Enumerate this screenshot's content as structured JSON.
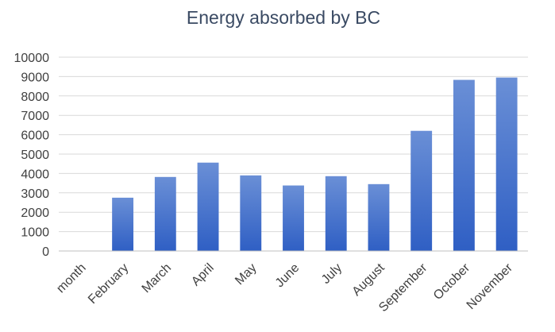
{
  "chart_data": {
    "type": "bar",
    "title": "Energy absorbed by BC",
    "xlabel": "",
    "ylabel": "",
    "categories": [
      "month",
      "February",
      "March",
      "April",
      "May",
      "June",
      "July",
      "August",
      "September",
      "October",
      "November"
    ],
    "values": [
      0,
      2750,
      3820,
      4560,
      3900,
      3380,
      3860,
      3450,
      6200,
      8830,
      8950
    ],
    "ylim": [
      0,
      10000
    ],
    "yticks": [
      0,
      1000,
      2000,
      3000,
      4000,
      5000,
      6000,
      7000,
      8000,
      9000,
      10000
    ],
    "grid": true,
    "legend": "none",
    "colors": {
      "bar_top": "#6a8fd6",
      "bar_bottom": "#2f5fc4"
    }
  }
}
